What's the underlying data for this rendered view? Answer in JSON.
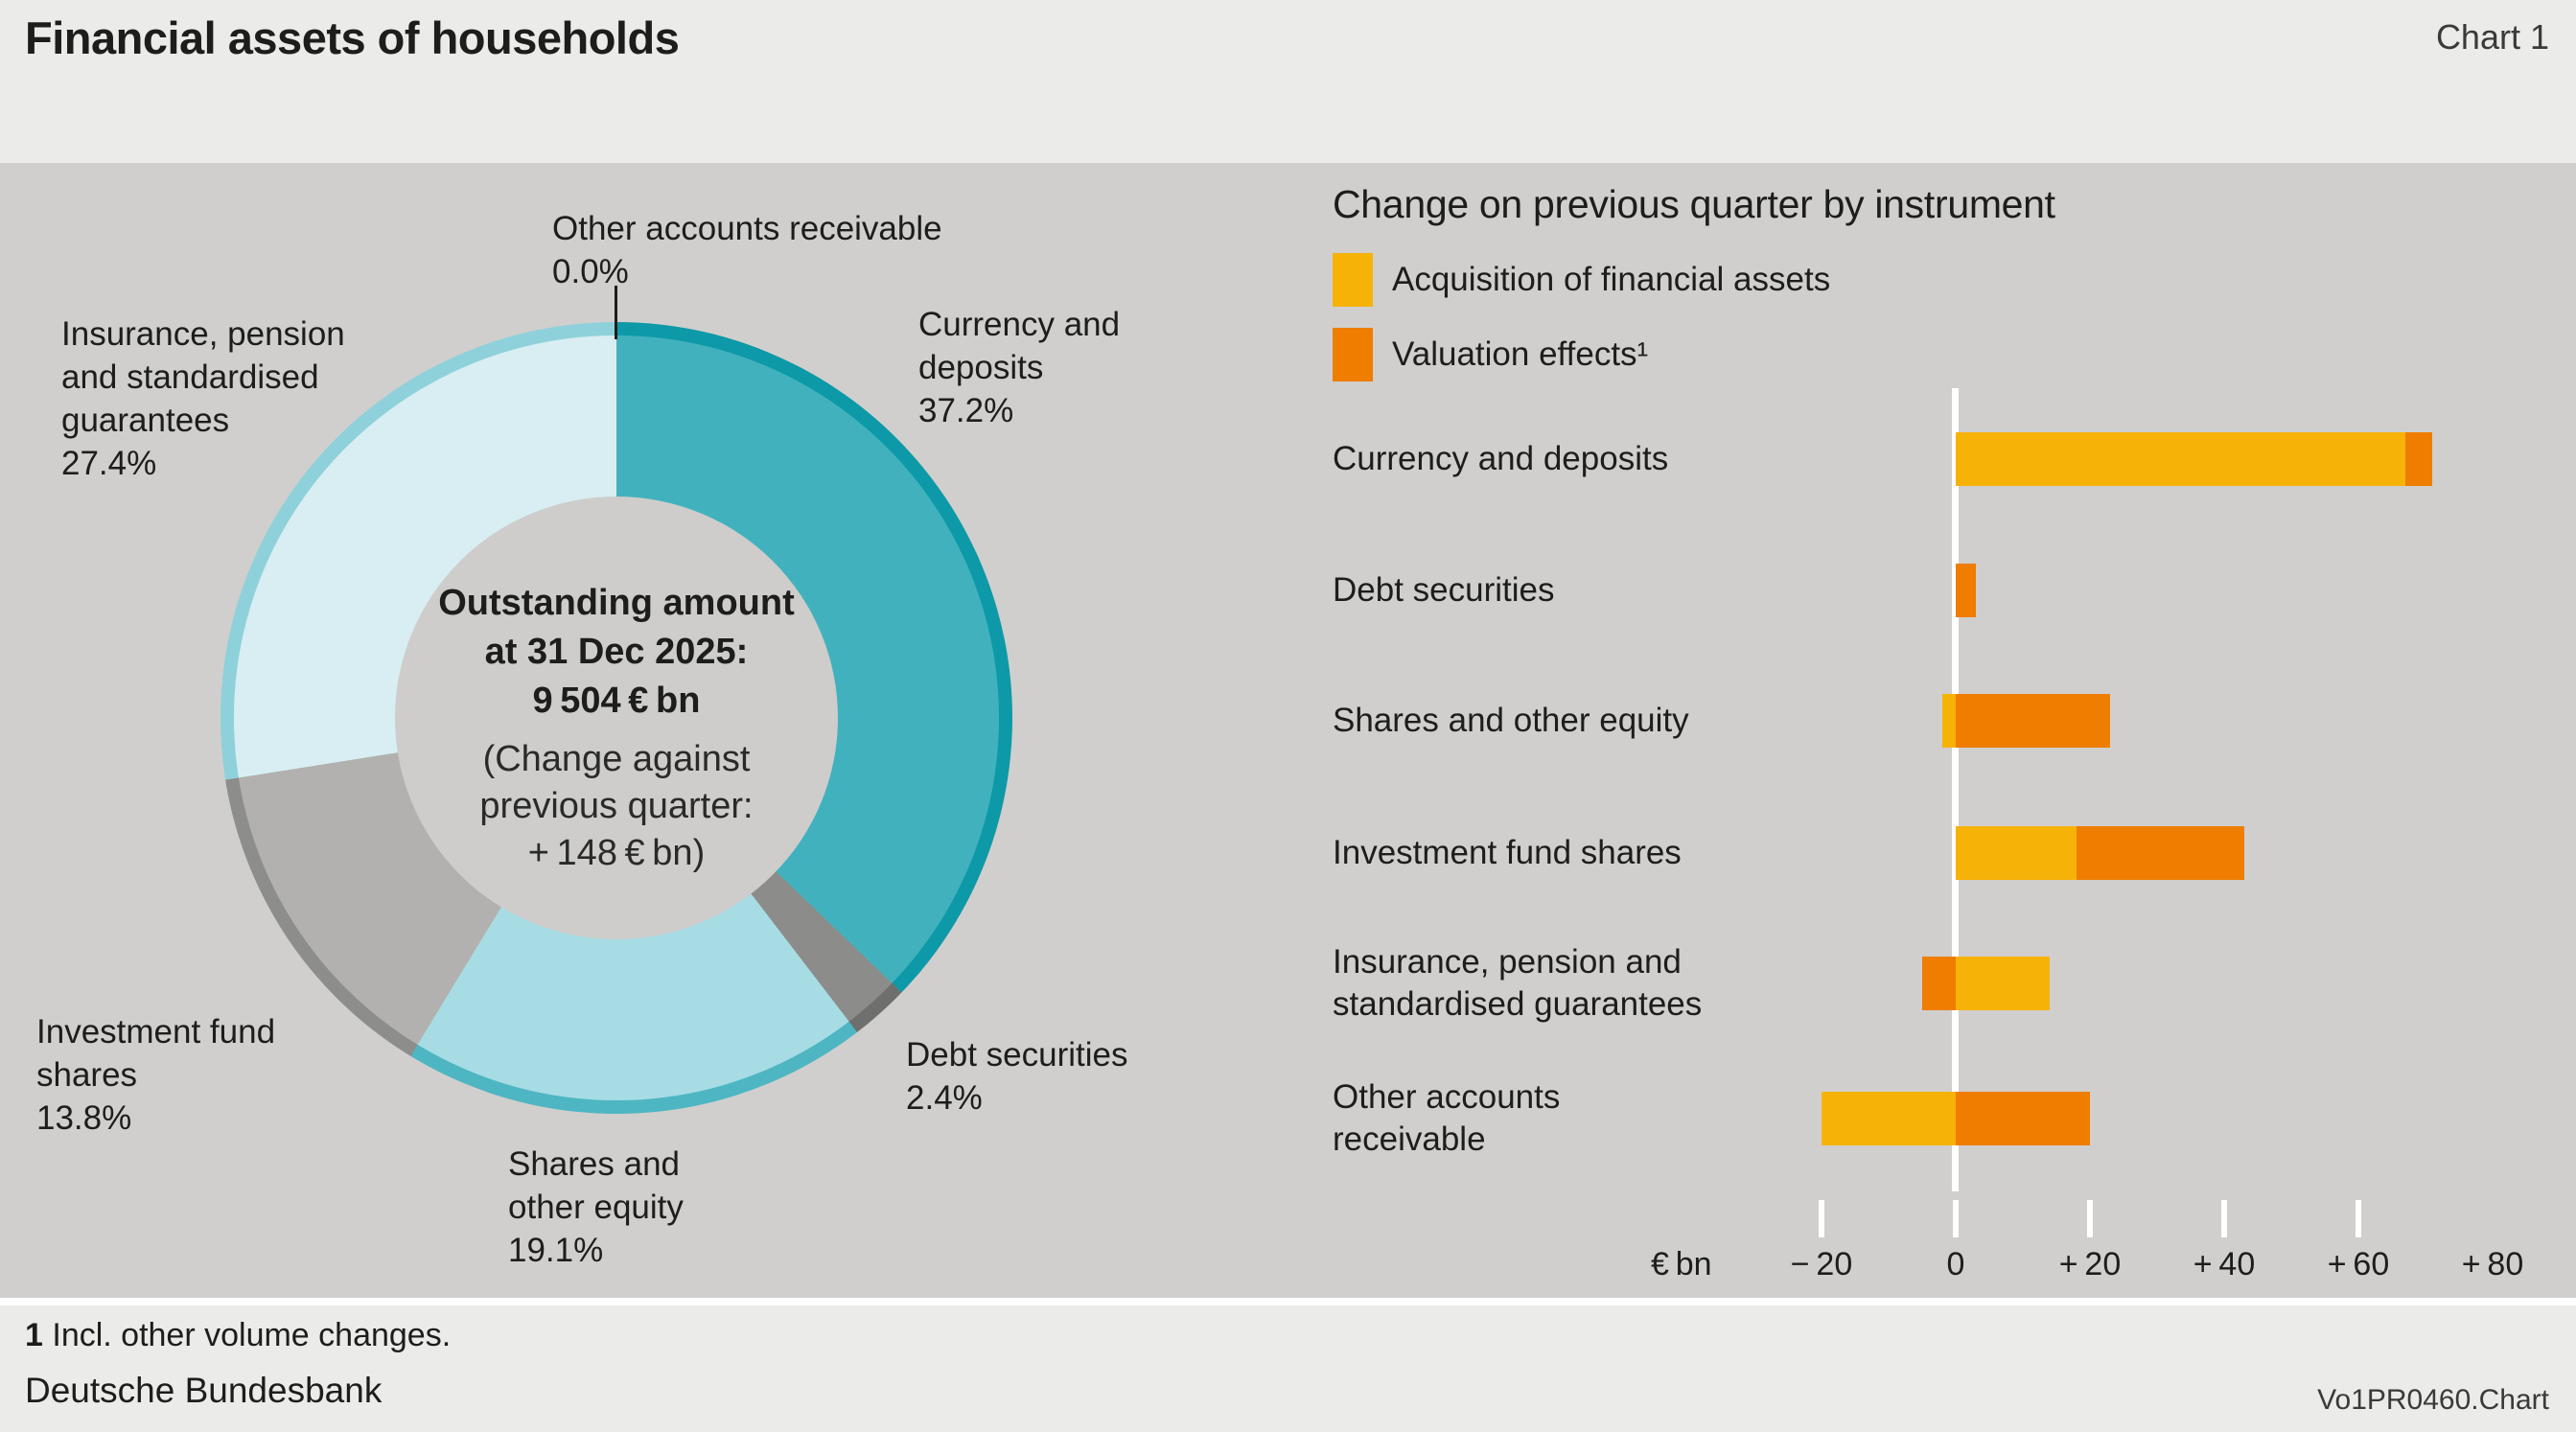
{
  "header": {
    "title": "Financial assets of households",
    "chart_label": "Chart 1"
  },
  "footer": {
    "footnote_marker": "1",
    "footnote_text": " Incl. other volume changes.",
    "source": "Deutsche Bundesbank",
    "code": "Vo1PR0460.Chart"
  },
  "colors": {
    "band_bg": "#d0cfcd",
    "page_bg": "#ebebe9",
    "text": "#1d1d1b",
    "zero_line": "#ffffff",
    "acquisition_yellow": "#f7b208",
    "valuation_orange": "#ee7d00"
  },
  "chart_data": [
    {
      "type": "pie",
      "donut": true,
      "slices": [
        {
          "label": "Currency and deposits",
          "pct": 37.2,
          "color": "#41b2bd",
          "rim_color": "#0d99a7"
        },
        {
          "label": "Debt securities",
          "pct": 2.4,
          "color": "#8c8c8a",
          "rim_color": "#6f6f6d"
        },
        {
          "label": "Shares and other equity",
          "pct": 19.1,
          "color": "#a7dce4",
          "rim_color": "#4db6c2"
        },
        {
          "label": "Investment fund shares",
          "pct": 13.8,
          "color": "#b2b1af",
          "rim_color": "#8d8d8b"
        },
        {
          "label": "Insurance, pension and standardised guarantees",
          "pct": 27.4,
          "color": "#d8eef2",
          "rim_color": "#8fd1da"
        },
        {
          "label": "Other accounts receivable",
          "pct": 0.0,
          "color": "#d8eef2",
          "rim_color": "#8fd1da"
        }
      ],
      "callout_labels": {
        "other": "Other accounts receivable\n0.0%",
        "insurance": "Insurance, pension\nand standardised\nguarantees\n27.4%",
        "currency": "Currency and\ndeposits\n37.2%",
        "debt": "Debt securities\n2.4%",
        "shares": "Shares and\nother equity\n19.1%",
        "investment": "Investment fund\nshares\n13.8%"
      },
      "center_text": {
        "bold": "Outstanding amount\nat 31 Dec 2025:\n9 504 € bn",
        "normal": "(Change against\nprevious quarter:\n+ 148 € bn)"
      }
    },
    {
      "type": "bar",
      "orientation": "horizontal",
      "title": "Change on previous quarter by instrument",
      "unit": "€ bn",
      "series_legend": [
        {
          "name": "Acquisition of financial assets",
          "color": "#f7b208"
        },
        {
          "name": "Valuation effects¹",
          "color": "#ee7d00"
        }
      ],
      "rows": [
        {
          "label": "Currency and deposits",
          "acquisition": 67,
          "valuation": 4
        },
        {
          "label": "Debt securities",
          "acquisition": 0,
          "valuation": 3
        },
        {
          "label": "Shares and other equity",
          "acquisition": -2,
          "valuation": 23
        },
        {
          "label": "Investment fund shares",
          "acquisition": 18,
          "valuation": 25
        },
        {
          "label": "Insurance, pension and\nstandardised guarantees",
          "acquisition": 14,
          "valuation": -5
        },
        {
          "label": "Other accounts\nreceivable",
          "acquisition": -20,
          "valuation": 20
        }
      ],
      "axis": {
        "range": [
          -32,
          92
        ],
        "ticks": [
          {
            "value": -20,
            "label": "− 20"
          },
          {
            "value": 0,
            "label": "0"
          },
          {
            "value": 20,
            "label": "+ 20"
          },
          {
            "value": 40,
            "label": "+ 40"
          },
          {
            "value": 60,
            "label": "+ 60"
          },
          {
            "value": 80,
            "label": "+ 80"
          }
        ],
        "tick_marks": [
          -20,
          0,
          20,
          40,
          60
        ]
      }
    }
  ]
}
